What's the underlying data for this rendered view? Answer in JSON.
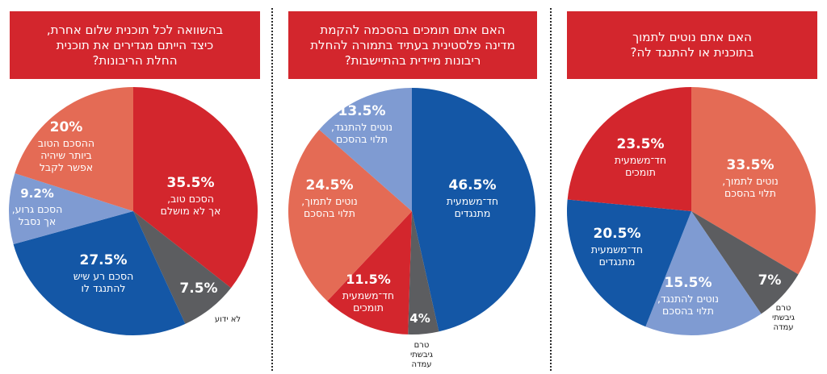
{
  "colors": {
    "red": "#d3262d",
    "salmon": "#e46b55",
    "lightblue": "#7f9bd2",
    "blue": "#1457a6",
    "gray": "#5c5d60"
  },
  "chart_data": [
    {
      "type": "pie",
      "title": "בהשוואה לכל תוכנית שלום אחרת, כיצד הייתם מגדירים את תוכנית החלת הריבונות?",
      "slices": [
        {
          "label": "הסכם טוב, אך לא מושלם",
          "value": 35.5,
          "pct": "35.5%",
          "color": "red"
        },
        {
          "label": "לא ידוע",
          "value": 7.5,
          "pct": "7.5%",
          "color": "gray"
        },
        {
          "label": "הסכם רע שיש להתנגד לו",
          "value": 27.5,
          "pct": "27.5%",
          "color": "blue"
        },
        {
          "label": "הסכם גרוע, אך נסבל",
          "value": 9.2,
          "pct": "9.2%",
          "color": "lightblue"
        },
        {
          "label": "ההסכם הטוב ביותר שיהיה אפשר לקבל",
          "value": 20,
          "pct": "20%",
          "color": "salmon"
        }
      ]
    },
    {
      "type": "pie",
      "title": "האם אתם תומכים בהסכמה להקמת מדינה פלסטינית בעתיד בתמורה להחלת ריבונות מיידית בהתיישבות?",
      "slices": [
        {
          "label": "חד־משמעית מתנגדים",
          "value": 46.5,
          "pct": "46.5%",
          "color": "blue"
        },
        {
          "label": "טרם גיבשתי עמדה",
          "value": 4,
          "pct": "4%",
          "color": "gray"
        },
        {
          "label": "חד־משמעית תומכים",
          "value": 11.5,
          "pct": "11.5%",
          "color": "red"
        },
        {
          "label": "נוטים לתמוך, תלוי בהסכם",
          "value": 24.5,
          "pct": "24.5%",
          "color": "salmon"
        },
        {
          "label": "נוטים להתנגד, תלוי בהסכם",
          "value": 13.5,
          "pct": "13.5%",
          "color": "lightblue"
        }
      ]
    },
    {
      "type": "pie",
      "title": "האם אתם נוטים לתמוך בתוכנית או להתנגד לה?",
      "slices": [
        {
          "label": "נוטים לתמוך, תלוי בהסכם",
          "value": 33.5,
          "pct": "33.5%",
          "color": "salmon"
        },
        {
          "label": "טרם גיבשתי עמדה",
          "value": 7,
          "pct": "7%",
          "color": "gray"
        },
        {
          "label": "נוטים להתנגד, תלוי בהסכם",
          "value": 15.5,
          "pct": "15.5%",
          "color": "lightblue"
        },
        {
          "label": "חד־משמעית מתנגדים",
          "value": 20.5,
          "pct": "20.5%",
          "color": "blue"
        },
        {
          "label": "חד־משמעית תומכים",
          "value": 23.5,
          "pct": "23.5%",
          "color": "red"
        }
      ]
    }
  ],
  "panels": [
    {
      "title_lines": [
        "בהשוואה לכל תוכנית שלום אחרת,",
        "כיצד הייתם מגדירים את תוכנית",
        "החלת הריבונות?"
      ],
      "label_lines": [
        [
          "הסכם טוב,",
          "אך לא מושלם"
        ],
        [
          "לא ידוע"
        ],
        [
          "הסכם רע שיש",
          "להתנגד לו"
        ],
        [
          "הסכם גרוע,",
          "אך נסבל"
        ],
        [
          "ההסכם הטוב",
          "ביותר שיהיה",
          "אפשר לקבל"
        ]
      ]
    },
    {
      "title_lines": [
        "האם אתם תומכים בהסכמה להקמת",
        "מדינה פלסטינית בעתיד בתמורה להחלת",
        "ריבונות מיידית בהתיישבות?"
      ],
      "label_lines": [
        [
          "חד־משמעית",
          "מתנגדים"
        ],
        [
          "טרם",
          "גיבשתי",
          "עמדה"
        ],
        [
          "חד־משמעית",
          "תומכים"
        ],
        [
          "נוטים לתמוך,",
          "תלוי בהסכם"
        ],
        [
          "נוטים להתנגד,",
          "תלוי בהסכם"
        ]
      ]
    },
    {
      "title_lines": [
        "האם אתם נוטים לתמוך",
        "בתוכנית או להתנגד לה?"
      ],
      "label_lines": [
        [
          "נוטים לתמוך,",
          "תלוי בהסכם"
        ],
        [
          "טרם",
          "גיבשתי",
          "עמדה"
        ],
        [
          "נוטים להתנגד,",
          "תלוי בהסכם"
        ],
        [
          "חד־משמעית",
          "מתנגדים"
        ],
        [
          "חד־משמעית",
          "תומכים"
        ]
      ]
    }
  ]
}
